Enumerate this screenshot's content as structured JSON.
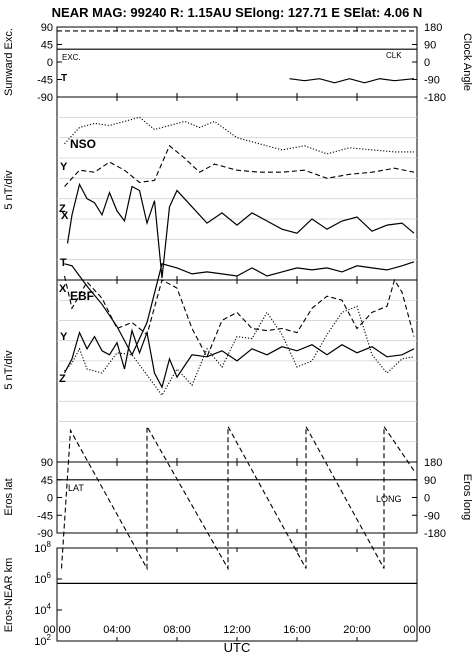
{
  "header": {
    "title": "NEAR MAG: 99240  R: 1.15AU  SElong: 127.71 E  SElat:    4.06 N"
  },
  "chart_data": [
    {
      "type": "line",
      "id": "exc-clk",
      "ylabel_left": "Sunward Exc.",
      "ylabel_right": "Clock Angle",
      "yticks_left": [
        "-90",
        "-45",
        "0",
        "45",
        "90"
      ],
      "yticks_right": [
        "-180",
        "-90",
        "0",
        "90",
        "180"
      ],
      "ylim_left": [
        -90,
        90
      ],
      "ylim_right": [
        -180,
        180
      ],
      "annotations": [
        "EXC.",
        "CLK",
        "T"
      ],
      "series": [
        {
          "name": "EXC.",
          "style": "solid",
          "x": [
            0,
            24
          ],
          "y": [
            33,
            33
          ]
        },
        {
          "name": "CLK",
          "style": "dashed",
          "x": [
            0,
            24
          ],
          "y": [
            80,
            80
          ]
        }
      ]
    },
    {
      "type": "line",
      "id": "nso",
      "panel_label": "NSO",
      "ylabel": "5 nT/div",
      "series_labels": [
        "Y",
        "Z",
        "X",
        "T"
      ],
      "ydivisions": 9,
      "series": [
        {
          "name": "Y",
          "style": "dotted",
          "x": [
            0.5,
            1.5,
            2.5,
            3.5,
            4.5,
            5.5,
            6.5,
            7.5,
            8.5,
            9.5,
            10.5,
            12,
            13.5,
            15,
            16.5,
            18,
            19.5,
            21,
            22.5,
            23.8
          ],
          "y": [
            6.7,
            7.5,
            7.7,
            7.6,
            7.8,
            8,
            7.4,
            7.6,
            7.8,
            7.5,
            7.8,
            7,
            6.7,
            6.4,
            6.6,
            6.2,
            6.5,
            6.4,
            6.3,
            6.3
          ]
        },
        {
          "name": "Z",
          "style": "dashed",
          "x": [
            0.5,
            1.5,
            2.5,
            3.5,
            4.5,
            5.5,
            6.5,
            7.5,
            8.5,
            9.5,
            10.5,
            12,
            13.5,
            15,
            16.5,
            18,
            19.5,
            21,
            22.5,
            23.8
          ],
          "y": [
            4.6,
            5.4,
            5.3,
            5.8,
            5.4,
            4.8,
            4.9,
            6.6,
            6,
            5.3,
            5.7,
            5.4,
            5.3,
            5.3,
            5.4,
            5,
            5.2,
            5.3,
            5.5,
            5.3
          ]
        },
        {
          "name": "T",
          "style": "solid",
          "x": [
            0.7,
            1,
            1.5,
            2,
            2.5,
            3,
            3.5,
            4,
            4.5,
            5,
            5.5,
            6,
            6.5,
            7,
            7.5,
            8,
            9,
            10,
            11,
            12,
            13,
            14,
            15,
            16,
            17,
            18,
            19,
            20,
            21,
            22,
            23,
            23.8
          ],
          "y": [
            1.8,
            3.2,
            4.7,
            4,
            3.8,
            3.2,
            4.3,
            3.4,
            2.9,
            4.6,
            4.4,
            2.8,
            3.9,
            0.1,
            3.6,
            4.4,
            3.6,
            2.8,
            3.3,
            2.7,
            3.3,
            2.9,
            2.5,
            2.3,
            3,
            2.5,
            2.9,
            3.1,
            2.4,
            2.7,
            2.8,
            2.3
          ]
        },
        {
          "name": "T",
          "style": "solid",
          "x": [
            15.5,
            16.5,
            17.5,
            18.5,
            19.5,
            20.5,
            21.5,
            22.5,
            23.8
          ],
          "y": [
            9.9,
            9.8,
            9.9,
            9.7,
            9.9,
            9.7,
            9.9,
            9.8,
            9.9
          ]
        }
      ]
    },
    {
      "type": "line",
      "id": "ebf",
      "panel_label": "EBF",
      "ylabel": "5 nT/div",
      "series_labels": [
        "X",
        "Y",
        "Z"
      ],
      "ydivisions": 9,
      "series": [
        {
          "name": "X",
          "style": "solid",
          "x": [
            0.5,
            1,
            2,
            3,
            4,
            5,
            6,
            7,
            8,
            9,
            10,
            11,
            12,
            13,
            14,
            15,
            16,
            17,
            18,
            19,
            20,
            21,
            22,
            23,
            23.8
          ],
          "y": [
            9.8,
            9.7,
            8.7,
            7.8,
            6.7,
            5.3,
            6.9,
            9.8,
            9.6,
            9.3,
            9.4,
            9.3,
            9.2,
            9.6,
            9.2,
            9.4,
            9.6,
            9.5,
            9.6,
            9.4,
            9.7,
            9.6,
            9.5,
            9.7,
            9.9
          ]
        },
        {
          "name": "Y",
          "style": "dashed",
          "x": [
            0.5,
            1,
            2,
            3,
            4,
            5,
            6,
            7,
            8,
            9,
            10,
            11,
            12,
            13,
            14,
            15,
            16,
            17,
            18,
            19,
            20,
            21,
            22,
            22.5,
            23,
            23.8
          ],
          "y": [
            9.2,
            7.6,
            8.9,
            8.1,
            6.6,
            6.9,
            6.3,
            9,
            8.6,
            6.6,
            5.2,
            7,
            7.4,
            6.6,
            6.5,
            6.6,
            6.4,
            7.6,
            8.2,
            8,
            6.6,
            7.4,
            7.7,
            9,
            8.4,
            6.2
          ]
        },
        {
          "name": "Z",
          "style": "solid",
          "x": [
            0.5,
            1,
            1.5,
            2,
            2.5,
            3,
            3.5,
            4,
            4.5,
            5,
            5.5,
            6,
            6.5,
            7,
            7.5,
            8,
            9,
            10,
            11,
            12,
            13,
            14,
            15,
            16,
            17,
            18,
            19,
            20,
            21,
            22,
            23,
            23.8
          ],
          "y": [
            4.4,
            5.1,
            6.4,
            5.6,
            6.2,
            5.5,
            5.3,
            5.9,
            4.6,
            6.5,
            5.4,
            6.4,
            4.4,
            3.7,
            5.1,
            4.2,
            5.3,
            5.2,
            5.5,
            5,
            5.6,
            5.3,
            5.7,
            5.5,
            5.8,
            5.3,
            5.8,
            5.4,
            5.7,
            5.2,
            5.3,
            5.6
          ]
        },
        {
          "name": "Z",
          "style": "dotted",
          "x": [
            0.5,
            1,
            1.5,
            2,
            3,
            4,
            5,
            6,
            7,
            8,
            9,
            10,
            11,
            12,
            13,
            14,
            15,
            16,
            17,
            18,
            19,
            20,
            21,
            22,
            23,
            23.8
          ],
          "y": [
            4.5,
            4.9,
            5.6,
            4.6,
            4.4,
            5.4,
            5.3,
            4.3,
            3.3,
            4.6,
            3.8,
            5.6,
            4.7,
            6.2,
            6.1,
            7.4,
            6.3,
            4.7,
            5,
            6.3,
            7.4,
            7.7,
            5.3,
            4.4,
            5.1,
            5.2
          ]
        }
      ]
    },
    {
      "type": "line",
      "id": "lat-long",
      "ylabel_left": "Eros lat",
      "ylabel_right": "Eros long",
      "yticks_left": [
        "-90",
        "-45",
        "0",
        "45",
        "90"
      ],
      "yticks_right": [
        "-180",
        "-90",
        "0",
        "90",
        "180"
      ],
      "ylim_left": [
        -90,
        90
      ],
      "ylim_right": [
        -180,
        180
      ],
      "annotations": [
        "LAT",
        "LONG"
      ],
      "series": [
        {
          "name": "LAT",
          "style": "solid",
          "x": [
            0,
            24
          ],
          "y": [
            45,
            45
          ]
        },
        {
          "name": "LONG",
          "style": "dashed",
          "x": [
            0.3,
            0.9,
            0.9,
            6,
            6,
            11.4,
            11.4,
            16.6,
            16.6,
            21.8,
            21.8,
            23.8
          ],
          "y": [
            -180,
            170,
            170,
            -180,
            180,
            -180,
            180,
            -180,
            180,
            -180,
            180,
            68
          ]
        }
      ]
    },
    {
      "type": "line",
      "id": "dist",
      "ylabel": "Eros-NEAR km",
      "yscale": "log",
      "yticks": [
        "10^2",
        "10^4",
        "10^6",
        "10^8"
      ],
      "ylim": [
        100,
        100000000
      ],
      "series": [
        {
          "name": "",
          "style": "solid",
          "x": [
            0,
            24
          ],
          "y": [
            520000,
            520000
          ]
        }
      ]
    }
  ],
  "xaxis": {
    "label": "UTC",
    "ticks": [
      "00:00",
      "04:00",
      "08:00",
      "12:00",
      "16:00",
      "20:00",
      "00:00"
    ],
    "xlim": [
      0,
      24
    ]
  }
}
